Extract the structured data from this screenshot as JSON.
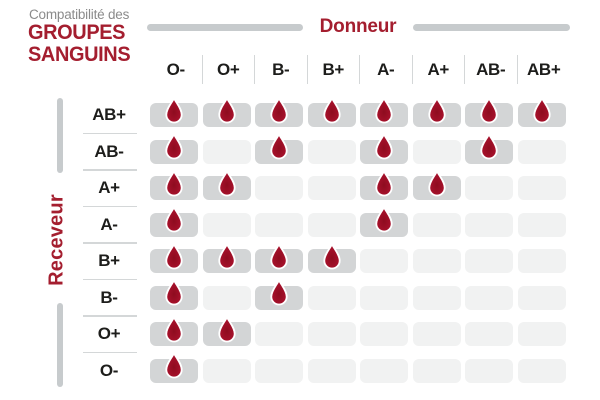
{
  "title": {
    "subtitle": "Compatibilité des",
    "line1": "GROUPES",
    "line2": "SANGUINS"
  },
  "axes": {
    "donor": "Donneur",
    "receiver": "Receveur"
  },
  "chart_data": {
    "type": "heatmap",
    "title": "Compatibilité des groupes sanguins",
    "x_label": "Donneur",
    "y_label": "Receveur",
    "columns": [
      "O-",
      "O+",
      "B-",
      "B+",
      "A-",
      "A+",
      "AB-",
      "AB+"
    ],
    "rows": [
      "AB+",
      "AB-",
      "A+",
      "A-",
      "B+",
      "B-",
      "O+",
      "O-"
    ],
    "matrix": [
      [
        1,
        1,
        1,
        1,
        1,
        1,
        1,
        1
      ],
      [
        1,
        0,
        1,
        0,
        1,
        0,
        1,
        0
      ],
      [
        1,
        1,
        0,
        0,
        1,
        1,
        0,
        0
      ],
      [
        1,
        0,
        0,
        0,
        1,
        0,
        0,
        0
      ],
      [
        1,
        1,
        1,
        1,
        0,
        0,
        0,
        0
      ],
      [
        1,
        0,
        1,
        0,
        0,
        0,
        0,
        0
      ],
      [
        1,
        1,
        0,
        0,
        0,
        0,
        0,
        0
      ],
      [
        1,
        0,
        0,
        0,
        0,
        0,
        0,
        0
      ]
    ],
    "marker": "blood-drop",
    "legend_position": "none",
    "grid": "off"
  },
  "colors": {
    "accent_red": "#a41e2f",
    "drop_red": "#b01330",
    "drop_dark": "#8e0c1f",
    "subtitle_gray": "#8b8b8b",
    "text_black": "#1d1d1b",
    "bar_gray": "#c7cbcd",
    "cell_filled": "#d3d5d6",
    "cell_empty": "#f1f2f2",
    "separator": "#d4d7d8"
  },
  "icons": {
    "compatible_marker": "blood-drop-icon"
  }
}
